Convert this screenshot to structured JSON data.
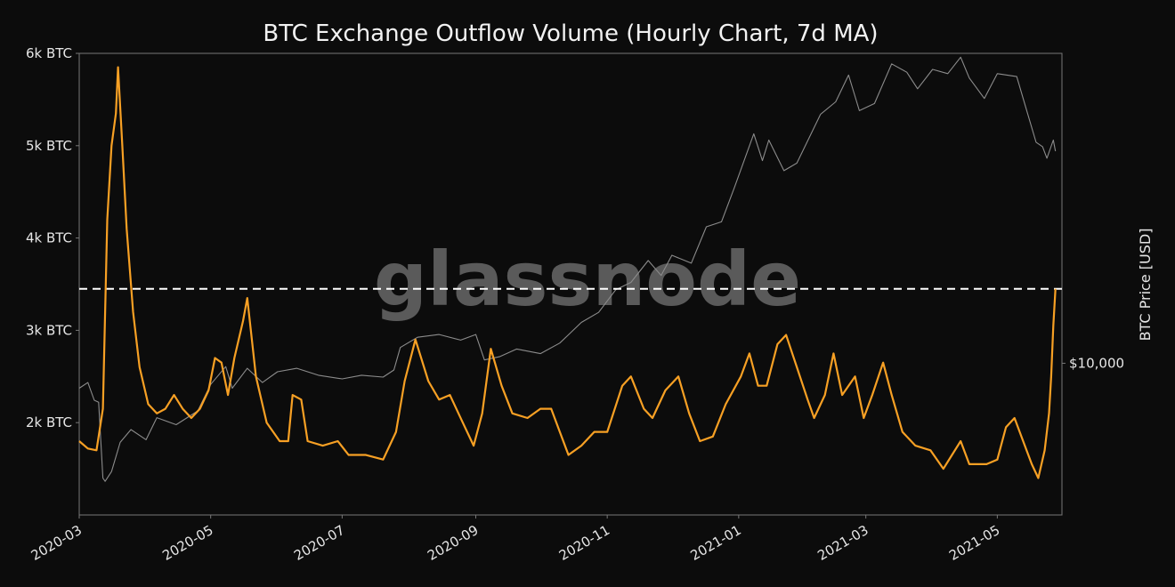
{
  "chart_data": {
    "type": "line",
    "title": "BTC Exchange Outflow Volume (Hourly Chart, 7d MA)",
    "watermark": "glassnode",
    "x_range": [
      "2020-03-01",
      "2021-05-31"
    ],
    "x_ticks": [
      "2020-03",
      "2020-05",
      "2020-07",
      "2020-09",
      "2020-11",
      "2021-01",
      "2021-03",
      "2021-05"
    ],
    "y_left": {
      "range": [
        1000,
        6000
      ],
      "ticks": [
        2000,
        3000,
        4000,
        5000,
        6000
      ],
      "tick_labels": [
        "2k BTC",
        "3k BTC",
        "4k BTC",
        "5k BTC",
        "6k BTC"
      ]
    },
    "y_right": {
      "label": "BTC Price [USD]",
      "scale": "log",
      "range": [
        4000,
        65000
      ],
      "ticks": [
        10000
      ],
      "tick_labels": [
        "$10,000"
      ]
    },
    "threshold": {
      "value": 3450,
      "style": "dashed",
      "color": "#ffffff"
    },
    "grid": false,
    "colors": {
      "outflow": "#f7a024",
      "price": "#8c8c8c",
      "frame": "#777777"
    },
    "series": [
      {
        "id": "outflow",
        "axis": "left",
        "points": [
          [
            "2020-03-01",
            1800
          ],
          [
            "2020-03-05",
            1720
          ],
          [
            "2020-03-09",
            1700
          ],
          [
            "2020-03-12",
            2150
          ],
          [
            "2020-03-14",
            4200
          ],
          [
            "2020-03-16",
            5000
          ],
          [
            "2020-03-18",
            5350
          ],
          [
            "2020-03-19",
            5850
          ],
          [
            "2020-03-21",
            5000
          ],
          [
            "2020-03-23",
            4100
          ],
          [
            "2020-03-26",
            3200
          ],
          [
            "2020-03-29",
            2600
          ],
          [
            "2020-04-02",
            2200
          ],
          [
            "2020-04-06",
            2100
          ],
          [
            "2020-04-10",
            2150
          ],
          [
            "2020-04-14",
            2300
          ],
          [
            "2020-04-18",
            2150
          ],
          [
            "2020-04-22",
            2050
          ],
          [
            "2020-04-26",
            2150
          ],
          [
            "2020-04-30",
            2350
          ],
          [
            "2020-05-03",
            2700
          ],
          [
            "2020-05-06",
            2650
          ],
          [
            "2020-05-09",
            2300
          ],
          [
            "2020-05-12",
            2700
          ],
          [
            "2020-05-16",
            3100
          ],
          [
            "2020-05-18",
            3350
          ],
          [
            "2020-05-22",
            2500
          ],
          [
            "2020-05-27",
            2000
          ],
          [
            "2020-06-02",
            1800
          ],
          [
            "2020-06-06",
            1800
          ],
          [
            "2020-06-08",
            2300
          ],
          [
            "2020-06-12",
            2250
          ],
          [
            "2020-06-15",
            1800
          ],
          [
            "2020-06-22",
            1750
          ],
          [
            "2020-06-29",
            1800
          ],
          [
            "2020-07-04",
            1650
          ],
          [
            "2020-07-12",
            1650
          ],
          [
            "2020-07-20",
            1600
          ],
          [
            "2020-07-26",
            1900
          ],
          [
            "2020-07-30",
            2450
          ],
          [
            "2020-08-04",
            2900
          ],
          [
            "2020-08-10",
            2450
          ],
          [
            "2020-08-15",
            2250
          ],
          [
            "2020-08-20",
            2300
          ],
          [
            "2020-08-26",
            2000
          ],
          [
            "2020-08-31",
            1750
          ],
          [
            "2020-09-04",
            2100
          ],
          [
            "2020-09-08",
            2800
          ],
          [
            "2020-09-13",
            2400
          ],
          [
            "2020-09-18",
            2100
          ],
          [
            "2020-09-25",
            2050
          ],
          [
            "2020-10-01",
            2150
          ],
          [
            "2020-10-06",
            2150
          ],
          [
            "2020-10-10",
            1900
          ],
          [
            "2020-10-14",
            1650
          ],
          [
            "2020-10-20",
            1750
          ],
          [
            "2020-10-26",
            1900
          ],
          [
            "2020-11-01",
            1900
          ],
          [
            "2020-11-08",
            2400
          ],
          [
            "2020-11-12",
            2500
          ],
          [
            "2020-11-18",
            2150
          ],
          [
            "2020-11-22",
            2050
          ],
          [
            "2020-11-28",
            2350
          ],
          [
            "2020-12-04",
            2500
          ],
          [
            "2020-12-09",
            2100
          ],
          [
            "2020-12-14",
            1800
          ],
          [
            "2020-12-20",
            1850
          ],
          [
            "2020-12-26",
            2200
          ],
          [
            "2021-01-02",
            2500
          ],
          [
            "2021-01-06",
            2750
          ],
          [
            "2021-01-10",
            2400
          ],
          [
            "2021-01-14",
            2400
          ],
          [
            "2021-01-19",
            2850
          ],
          [
            "2021-01-23",
            2950
          ],
          [
            "2021-01-28",
            2600
          ],
          [
            "2021-02-02",
            2250
          ],
          [
            "2021-02-05",
            2050
          ],
          [
            "2021-02-10",
            2300
          ],
          [
            "2021-02-14",
            2750
          ],
          [
            "2021-02-18",
            2300
          ],
          [
            "2021-02-24",
            2500
          ],
          [
            "2021-02-28",
            2050
          ],
          [
            "2021-03-04",
            2300
          ],
          [
            "2021-03-09",
            2650
          ],
          [
            "2021-03-13",
            2300
          ],
          [
            "2021-03-18",
            1900
          ],
          [
            "2021-03-24",
            1750
          ],
          [
            "2021-03-31",
            1700
          ],
          [
            "2021-04-06",
            1500
          ],
          [
            "2021-04-10",
            1650
          ],
          [
            "2021-04-14",
            1800
          ],
          [
            "2021-04-18",
            1550
          ],
          [
            "2021-04-26",
            1550
          ],
          [
            "2021-05-01",
            1600
          ],
          [
            "2021-05-05",
            1950
          ],
          [
            "2021-05-09",
            2050
          ],
          [
            "2021-05-13",
            1800
          ],
          [
            "2021-05-17",
            1550
          ],
          [
            "2021-05-20",
            1400
          ],
          [
            "2021-05-23",
            1700
          ],
          [
            "2021-05-25",
            2100
          ],
          [
            "2021-05-26",
            2500
          ],
          [
            "2021-05-27",
            3050
          ],
          [
            "2021-05-28",
            3450
          ]
        ]
      },
      {
        "id": "price",
        "axis": "right",
        "points": [
          [
            "2020-03-01",
            8600
          ],
          [
            "2020-03-05",
            8900
          ],
          [
            "2020-03-08",
            8000
          ],
          [
            "2020-03-10",
            7900
          ],
          [
            "2020-03-12",
            5000
          ],
          [
            "2020-03-13",
            4900
          ],
          [
            "2020-03-16",
            5200
          ],
          [
            "2020-03-20",
            6200
          ],
          [
            "2020-03-25",
            6700
          ],
          [
            "2020-04-01",
            6300
          ],
          [
            "2020-04-06",
            7200
          ],
          [
            "2020-04-15",
            6900
          ],
          [
            "2020-04-25",
            7500
          ],
          [
            "2020-05-01",
            8800
          ],
          [
            "2020-05-08",
            9800
          ],
          [
            "2020-05-11",
            8600
          ],
          [
            "2020-05-18",
            9700
          ],
          [
            "2020-05-25",
            8900
          ],
          [
            "2020-06-01",
            9500
          ],
          [
            "2020-06-10",
            9700
          ],
          [
            "2020-06-20",
            9300
          ],
          [
            "2020-07-01",
            9100
          ],
          [
            "2020-07-10",
            9300
          ],
          [
            "2020-07-20",
            9200
          ],
          [
            "2020-07-25",
            9600
          ],
          [
            "2020-07-28",
            11000
          ],
          [
            "2020-08-05",
            11700
          ],
          [
            "2020-08-15",
            11900
          ],
          [
            "2020-08-25",
            11500
          ],
          [
            "2020-09-01",
            11900
          ],
          [
            "2020-09-05",
            10200
          ],
          [
            "2020-09-12",
            10400
          ],
          [
            "2020-09-20",
            10900
          ],
          [
            "2020-10-01",
            10600
          ],
          [
            "2020-10-10",
            11300
          ],
          [
            "2020-10-20",
            12800
          ],
          [
            "2020-10-28",
            13600
          ],
          [
            "2020-11-05",
            15600
          ],
          [
            "2020-11-12",
            16300
          ],
          [
            "2020-11-20",
            18600
          ],
          [
            "2020-11-26",
            17000
          ],
          [
            "2020-12-01",
            19200
          ],
          [
            "2020-12-10",
            18300
          ],
          [
            "2020-12-17",
            22800
          ],
          [
            "2020-12-24",
            23500
          ],
          [
            "2020-12-30",
            28900
          ],
          [
            "2021-01-08",
            40000
          ],
          [
            "2021-01-12",
            34000
          ],
          [
            "2021-01-15",
            38500
          ],
          [
            "2021-01-22",
            32000
          ],
          [
            "2021-01-28",
            33500
          ],
          [
            "2021-02-08",
            45000
          ],
          [
            "2021-02-15",
            48500
          ],
          [
            "2021-02-21",
            57000
          ],
          [
            "2021-02-26",
            46000
          ],
          [
            "2021-03-05",
            48000
          ],
          [
            "2021-03-13",
            61000
          ],
          [
            "2021-03-20",
            58000
          ],
          [
            "2021-03-25",
            52500
          ],
          [
            "2021-04-01",
            59000
          ],
          [
            "2021-04-08",
            57500
          ],
          [
            "2021-04-14",
            63500
          ],
          [
            "2021-04-18",
            56000
          ],
          [
            "2021-04-25",
            49500
          ],
          [
            "2021-05-01",
            57500
          ],
          [
            "2021-05-10",
            56500
          ],
          [
            "2021-05-13",
            49500
          ],
          [
            "2021-05-19",
            38000
          ],
          [
            "2021-05-22",
            37000
          ],
          [
            "2021-05-24",
            34500
          ],
          [
            "2021-05-27",
            38500
          ],
          [
            "2021-05-28",
            36000
          ]
        ]
      }
    ]
  }
}
